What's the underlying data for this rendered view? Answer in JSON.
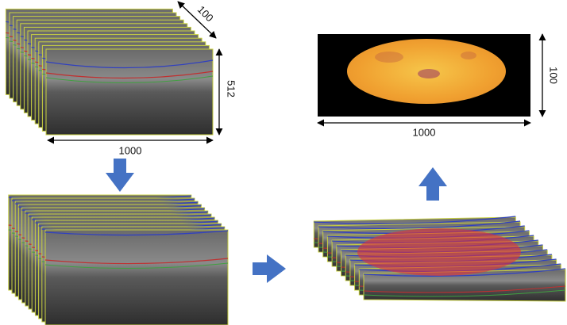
{
  "scan_stack": {
    "depth_label": "100",
    "height_label": "512",
    "width_label": "1000"
  },
  "enface_map": {
    "height_label": "100",
    "width_label": "1000"
  }
}
